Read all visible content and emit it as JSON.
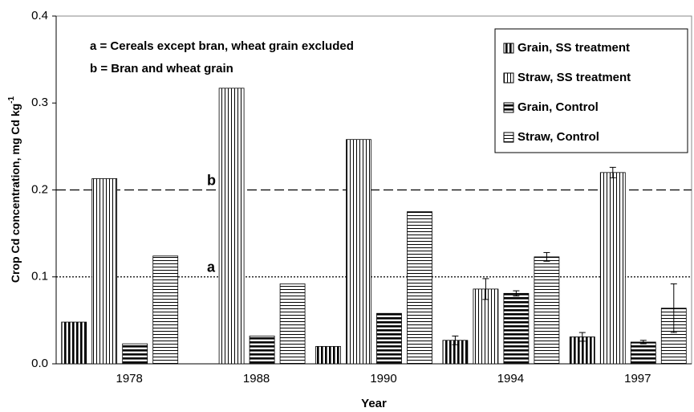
{
  "chart_data": {
    "type": "bar",
    "categories": [
      "1978",
      "1988",
      "1990",
      "1994",
      "1997"
    ],
    "series": [
      {
        "name": "Grain, SS treatment",
        "color": "#000000",
        "hatch": "vertical-bold",
        "values": [
          0.048,
          null,
          0.02,
          0.027,
          0.031
        ],
        "errors": [
          null,
          null,
          null,
          0.005,
          0.005
        ]
      },
      {
        "name": "Straw, SS treatment",
        "color": "#000000",
        "hatch": "vertical",
        "values": [
          0.213,
          0.317,
          0.258,
          0.086,
          0.22
        ],
        "errors": [
          null,
          null,
          null,
          0.012,
          0.006
        ]
      },
      {
        "name": "Grain, Control",
        "color": "#000000",
        "hatch": "horizontal-bold",
        "values": [
          0.023,
          0.032,
          0.058,
          0.081,
          0.025
        ],
        "errors": [
          null,
          null,
          null,
          0.003,
          0.002
        ]
      },
      {
        "name": "Straw, Control",
        "color": "#000000",
        "hatch": "horizontal",
        "values": [
          0.124,
          0.092,
          0.175,
          0.123,
          0.064
        ],
        "errors": [
          null,
          null,
          null,
          0.005,
          0.028
        ]
      }
    ],
    "ylim": [
      0,
      0.4
    ],
    "yticks": [
      {
        "value": 0,
        "label": "0.0"
      },
      0.1,
      0.2,
      0.3,
      0.4
    ],
    "xlabel": "Year",
    "ylabel": "Crop Cd concentration, mg Cd kg",
    "ylabel_sup": "-1",
    "reference_lines": [
      {
        "label": "b",
        "value": 0.2,
        "style": "dashed"
      },
      {
        "label": "a",
        "value": 0.1,
        "style": "dotted"
      }
    ],
    "annotations": [
      "a = Cereals except bran, wheat grain excluded",
      "b =  Bran and wheat grain"
    ],
    "legend": "top-right"
  }
}
